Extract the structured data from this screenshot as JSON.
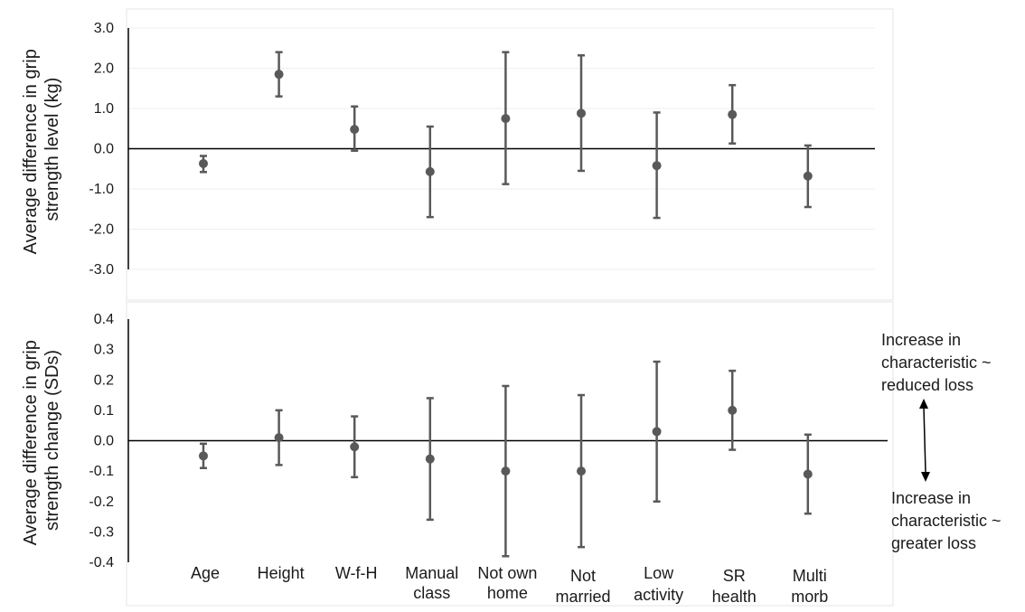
{
  "chart_data": [
    {
      "type": "scatter",
      "subtype": "point-with-error-bars",
      "ylabel": "Average difference in grip strength level (kg)",
      "ylim": [
        -3.0,
        3.0
      ],
      "yticks": [
        "3.0",
        "2.0",
        "1.0",
        "0.0",
        "-1.0",
        "-2.0",
        "-3.0"
      ],
      "grid": true,
      "categories": [
        "Age",
        "Height",
        "W-f-H",
        "Manual class",
        "Not own home",
        "Not married",
        "Low activity",
        "SR health",
        "Multi morb"
      ],
      "points": [
        {
          "y": -0.37,
          "lower": -0.58,
          "upper": -0.18
        },
        {
          "y": 1.85,
          "lower": 1.3,
          "upper": 2.4
        },
        {
          "y": 0.48,
          "lower": -0.05,
          "upper": 1.05
        },
        {
          "y": -0.57,
          "lower": -1.7,
          "upper": 0.55
        },
        {
          "y": 0.75,
          "lower": -0.88,
          "upper": 2.4
        },
        {
          "y": 0.88,
          "lower": -0.55,
          "upper": 2.32
        },
        {
          "y": -0.42,
          "lower": -1.72,
          "upper": 0.9
        },
        {
          "y": 0.85,
          "lower": 0.13,
          "upper": 1.58
        },
        {
          "y": -0.68,
          "lower": -1.45,
          "upper": 0.08
        }
      ]
    },
    {
      "type": "scatter",
      "subtype": "point-with-error-bars",
      "ylabel": "Average difference in grip strength change (SDs)",
      "ylim": [
        -0.4,
        0.4
      ],
      "yticks": [
        "0.4",
        "0.3",
        "0.2",
        "0.1",
        "0.0",
        "-0.1",
        "-0.2",
        "-0.3",
        "-0.4"
      ],
      "grid": false,
      "categories": [
        "Age",
        "Height",
        "W-f-H",
        "Manual class",
        "Not own home",
        "Not married",
        "Low activity",
        "SR health",
        "Multi morb"
      ],
      "category_lines": [
        [
          "Age"
        ],
        [
          "Height"
        ],
        [
          "W-f-H"
        ],
        [
          "Manual",
          "class"
        ],
        [
          "Not own",
          "home"
        ],
        [
          "Not",
          "married"
        ],
        [
          "Low",
          "activity"
        ],
        [
          "SR",
          "health"
        ],
        [
          "Multi",
          "morb"
        ]
      ],
      "points": [
        {
          "y": -0.05,
          "lower": -0.09,
          "upper": -0.01
        },
        {
          "y": 0.01,
          "lower": -0.08,
          "upper": 0.1
        },
        {
          "y": -0.02,
          "lower": -0.12,
          "upper": 0.08
        },
        {
          "y": -0.06,
          "lower": -0.26,
          "upper": 0.14
        },
        {
          "y": -0.1,
          "lower": -0.38,
          "upper": 0.18
        },
        {
          "y": -0.1,
          "lower": -0.35,
          "upper": 0.15
        },
        {
          "y": 0.03,
          "lower": -0.2,
          "upper": 0.26
        },
        {
          "y": 0.1,
          "lower": -0.03,
          "upper": 0.23
        },
        {
          "y": -0.11,
          "lower": -0.24,
          "upper": 0.02
        }
      ],
      "annotations": {
        "top": [
          "Increase in",
          "characteristic ~",
          "reduced loss"
        ],
        "bottom": [
          "Increase in",
          "characteristic ~",
          "greater loss"
        ]
      }
    }
  ],
  "colors": {
    "marker": "#595959",
    "axis": "#000000",
    "grid": "#efefef",
    "frame": "#e6e6e6"
  }
}
